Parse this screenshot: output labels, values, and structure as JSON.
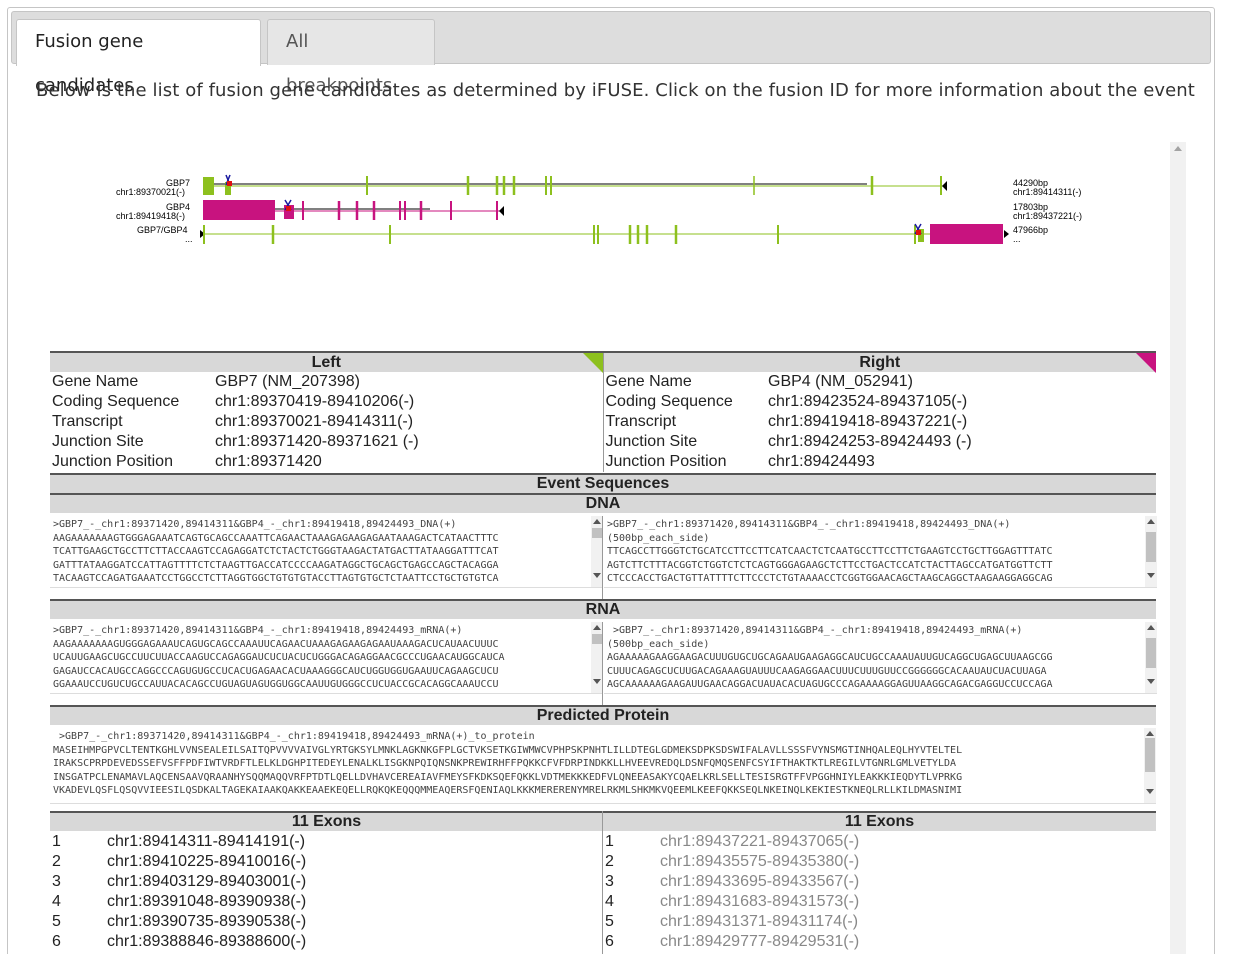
{
  "tabs": [
    {
      "label": "Fusion gene candidates"
    },
    {
      "label": "All breakpoints"
    }
  ],
  "intro_text": "Below is the list of fusion gene candidates as determined by iFUSE. Click on the fusion ID for more information about the event",
  "diagram": {
    "row1": {
      "name": "GBP7",
      "coord": "chr1:89370021(-)",
      "size": "44290bp",
      "right_coord": "chr1:89414311(-)"
    },
    "row2": {
      "name": "GBP4",
      "coord": "chr1:89419418(-)",
      "size": "17803bp",
      "right_coord": "chr1:89437221(-)"
    },
    "row3": {
      "name": "GBP7/GBP4",
      "coord": "...",
      "size": "47966bp",
      "right_coord": "..."
    },
    "colors": {
      "left": "#8dc01e",
      "right": "#c8137f",
      "marker_blue": "#1a1aa0",
      "marker_red": "#e01010"
    }
  },
  "left": {
    "header": "Left",
    "gene_name_label": "Gene Name",
    "gene_name": "GBP7 (NM_207398)",
    "cds_label": "Coding Sequence",
    "cds": "chr1:89370419-89410206(-)",
    "transcript_label": "Transcript",
    "transcript": "chr1:89370021-89414311(-)",
    "junction_site_label": "Junction Site",
    "junction_site": "chr1:89371420-89371621 (-)",
    "junction_pos_label": "Junction Position",
    "junction_pos": "chr1:89371420"
  },
  "right": {
    "header": "Right",
    "gene_name_label": "Gene Name",
    "gene_name": "GBP4 (NM_052941)",
    "cds_label": "Coding Sequence",
    "cds": "chr1:89423524-89437105(-)",
    "transcript_label": "Transcript",
    "transcript": "chr1:89419418-89437221(-)",
    "junction_site_label": "Junction Site",
    "junction_site": "chr1:89424253-89424493 (-)",
    "junction_pos_label": "Junction Position",
    "junction_pos": "chr1:89424493"
  },
  "sections": {
    "event_sequences": "Event Sequences",
    "dna": "DNA",
    "rna": "RNA",
    "protein": "Predicted Protein"
  },
  "dna_left": ">GBP7_-_chr1:89371420,89414311&GBP4_-_chr1:89419418,89424493_DNA(+)\nAAGAAAAAAAGTGGGAGAAATCAGTGCAGCCAAATTCAGAACTAAAGAGAAGAGAATAAAGACTCATAACTTTC\nTCATTGAAGCTGCCTTCTTACCAAGTCCAGAGGATCTCTACTCTGGGTAAGACTATGACTTATAAGGATTTCAT\nGATTTATAAGGATCCATTAGTTTTCTCTAAGTTGACCATCCCCAAGATAGGCTGCAGCTGAGCCAGCTACAGGA\nTACAAGTCCAGATGAAATCCTGGCCTCTTAGGTGGCTGTGTGTACCTTAGTGTGCTCTAATTCCTGCTGTGTCA",
  "dna_right": ">GBP7_-_chr1:89371420,89414311&GBP4_-_chr1:89419418,89424493_DNA(+)\n(500bp_each_side)\nTTCAGCCTTGGGTCTGCATCCTTCCTTCATCAACTCTCAATGCCTTCCTTCTGAAGTCCTGCTTGGAGTTTATC\nAGTCTTCTTTACGGTCTGGTCTCTCAGTGGGAGAAGCTCTTCCTGACTCCATCTACTTAGCCATGATGGTTCTT\nCTCCCACCTGACTGTTATTTTCTTCCCTCTGTAAAACCTCGGTGGAACAGCTAAGCAGGCTAAGAAGGAGGCAG",
  "rna_left": ">GBP7_-_chr1:89371420,89414311&GBP4_-_chr1:89419418,89424493_mRNA(+)\nAAGAAAAAAAGUGGGAGAAAUCAGUGCAGCCAAAUUCAGAACUAAAGAGAAGAGAAUAAAGACUCAUAACUUUC\nUCAUUGAAGCUGCCUUCUUACCAAGUCCAGAGGAUCUCUACUCUGGGACAGAGGAACGCCCUGAACAUGGCAUCA\nGAGAUCCACAUGCCAGGCCCAGUGUGCCUCACUGAGAACACUAAAGGGCAUCUGGUGGUGAAUUCAGAAGCUCU\nGGAAAUCCUGUCUGCCAUUACACAGCCUGUAGUAGUGGUGGCAAUUGUGGGCCUCUACCGCACAGGCAAAUCCU",
  "rna_right": " >GBP7_-_chr1:89371420,89414311&GBP4_-_chr1:89419418,89424493_mRNA(+)\n(500bp_each_side)\nAGAAAAAGAAGGAAGACUUUGUGCUGCAGAAUGAAGAGGCAUCUGCCAAAUAUUGUCAGGCUGAGCUUAAGCGG\nCUUUCAGAGCUCUUGACAGAAAGUAUUUCAAGAGGAACUUUCUUUGUUCCGGGGGGCACAAUAUCUACUUAGA\nAGCAAAAAAGAAGAUUGAACAGGACUAUACACUAGUGCCCAGAAAAGGAGUUAAGGCAGACGAGGUCCUCCAGA",
  "protein": " >GBP7_-_chr1:89371420,89414311&GBP4_-_chr1:89419418,89424493_mRNA(+)_to_protein\nMASEIHMPGPVCLTENTKGHLVVNSEALEILSAITQPVVVVAIVGLYRTGKSYLMNKLAGKNKGFPLGCTVKSETKGIWMWCVPHPSKPNHTLILLDTEGLGDMEKSDPKSDSWIFALAVLLSSSFVYNSMGTINHQALEQLHYVTELTEL\nIRAKSCPRPDEVEDSSEFVSFFPDFIWTVRDFTLELKLDGHPITEDEYLENALKLISGKNPQIQNSNKPREWIRHFFPQKKCFVFDRPINDKKLLHVEEVREDQLDSNFQMQSENFCSYIFTHAKTKTLREGILVTGNRLGMLVETYLDA\nINSGATPCLENAMAVLAQCENSAAVQRAANHYSQQMAQQVRFPTDTLQELLDVHAVCEREAIAVFMEYSFKDKSQEFQKKLVDTMEKKKEDFVLQNEEASAKYCQAELKRLSELLTESISRGTFFVPGGHNIYLEAKKKIEQDYTLVPRKG\nVKADEVLQSFLQSQVVIEESILQSDKALTAGEKAIAAKQAKKEAAEKEQELLRQKQKEQQQMMEAQERSFQENIAQLKKKMERERENYMRELRKMLSHKMKVQEEMLKEEFQKKSEQLNKEINQLKEKIESTKNEQLRLLKILDMASNIMI",
  "exons": {
    "left_header": "11 Exons",
    "right_header": "11 Exons",
    "left": [
      {
        "n": "1",
        "range": "chr1:89414311-89414191(-)"
      },
      {
        "n": "2",
        "range": "chr1:89410225-89410016(-)"
      },
      {
        "n": "3",
        "range": "chr1:89403129-89403001(-)"
      },
      {
        "n": "4",
        "range": "chr1:89391048-89390938(-)"
      },
      {
        "n": "5",
        "range": "chr1:89390735-89390538(-)"
      },
      {
        "n": "6",
        "range": "chr1:89388846-89388600(-)"
      }
    ],
    "right": [
      {
        "n": "1",
        "range": "chr1:89437221-89437065(-)"
      },
      {
        "n": "2",
        "range": "chr1:89435575-89435380(-)"
      },
      {
        "n": "3",
        "range": "chr1:89433695-89433567(-)"
      },
      {
        "n": "4",
        "range": "chr1:89431683-89431573(-)"
      },
      {
        "n": "5",
        "range": "chr1:89431371-89431174(-)"
      },
      {
        "n": "6",
        "range": "chr1:89429777-89429531(-)"
      }
    ]
  }
}
